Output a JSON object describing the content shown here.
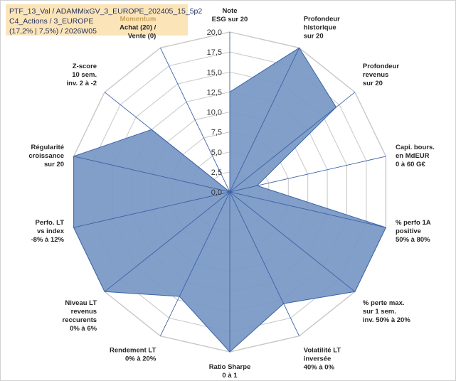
{
  "header": {
    "line1": "PTF_13_Val / ADAMMixGV_3_EUROPE_202405_15_5p2",
    "line2": "C4_Actions / 3_EUROPE",
    "line3": "(17,2% | 7,5%) / 2026W05"
  },
  "colors": {
    "area_fill": "#7797c4",
    "area_stroke": "#3c63a8",
    "grid": "#c8c8c8",
    "spoke": "#3c63a8",
    "header_bg": "#fbe5b8",
    "header_text": "#1f2d5c"
  },
  "chart_data": {
    "type": "radar",
    "title": "",
    "rmin": 0,
    "rmax": 20,
    "tick_step": 2.5,
    "tick_labels": [
      "0,0",
      "2,5",
      "5,0",
      "7,5",
      "10,0",
      "12,5",
      "15,0",
      "17,5",
      "20,0"
    ],
    "axes": [
      {
        "lines": [
          "Note",
          "ESG sur 20"
        ],
        "value": 12.5
      },
      {
        "lines": [
          "Profondeur",
          "historique",
          "sur 20"
        ],
        "value": 20
      },
      {
        "lines": [
          "Profondeur",
          "revenus",
          "sur 20"
        ],
        "value": 17
      },
      {
        "lines": [
          "Capi. bours.",
          "en MdEUR",
          "0 à 60 G€"
        ],
        "value": 3.5
      },
      {
        "lines": [
          "% perfo 1A",
          "positive",
          "50% à 80%"
        ],
        "value": 20
      },
      {
        "lines": [
          "% perte max.",
          "sur 1 sem.",
          "inv. 50% à 20%"
        ],
        "value": 20
      },
      {
        "lines": [
          "Volatilité LT",
          "inversée",
          "40% à 0%"
        ],
        "value": 15.5
      },
      {
        "lines": [
          "Ratio Sharpe",
          "0 à 1"
        ],
        "value": 20
      },
      {
        "lines": [
          "Rendement LT",
          "0% à 20%"
        ],
        "value": 14.5
      },
      {
        "lines": [
          "Niveau LT",
          "revenus",
          "reccurents",
          "0% à 6%"
        ],
        "value": 20
      },
      {
        "lines": [
          "Perfo. LT",
          "vs index",
          "-8% à 12%"
        ],
        "value": 20
      },
      {
        "lines": [
          "Régularité",
          "croissance",
          "sur 20"
        ],
        "value": 20
      },
      {
        "lines": [
          "Z-score",
          "10 sem.",
          "inv. 2 à -2"
        ],
        "value": 12.5
      },
      {
        "lines": [
          "Momentum",
          "Achat (20) /",
          "Vente (0)"
        ],
        "value": 0
      }
    ]
  }
}
